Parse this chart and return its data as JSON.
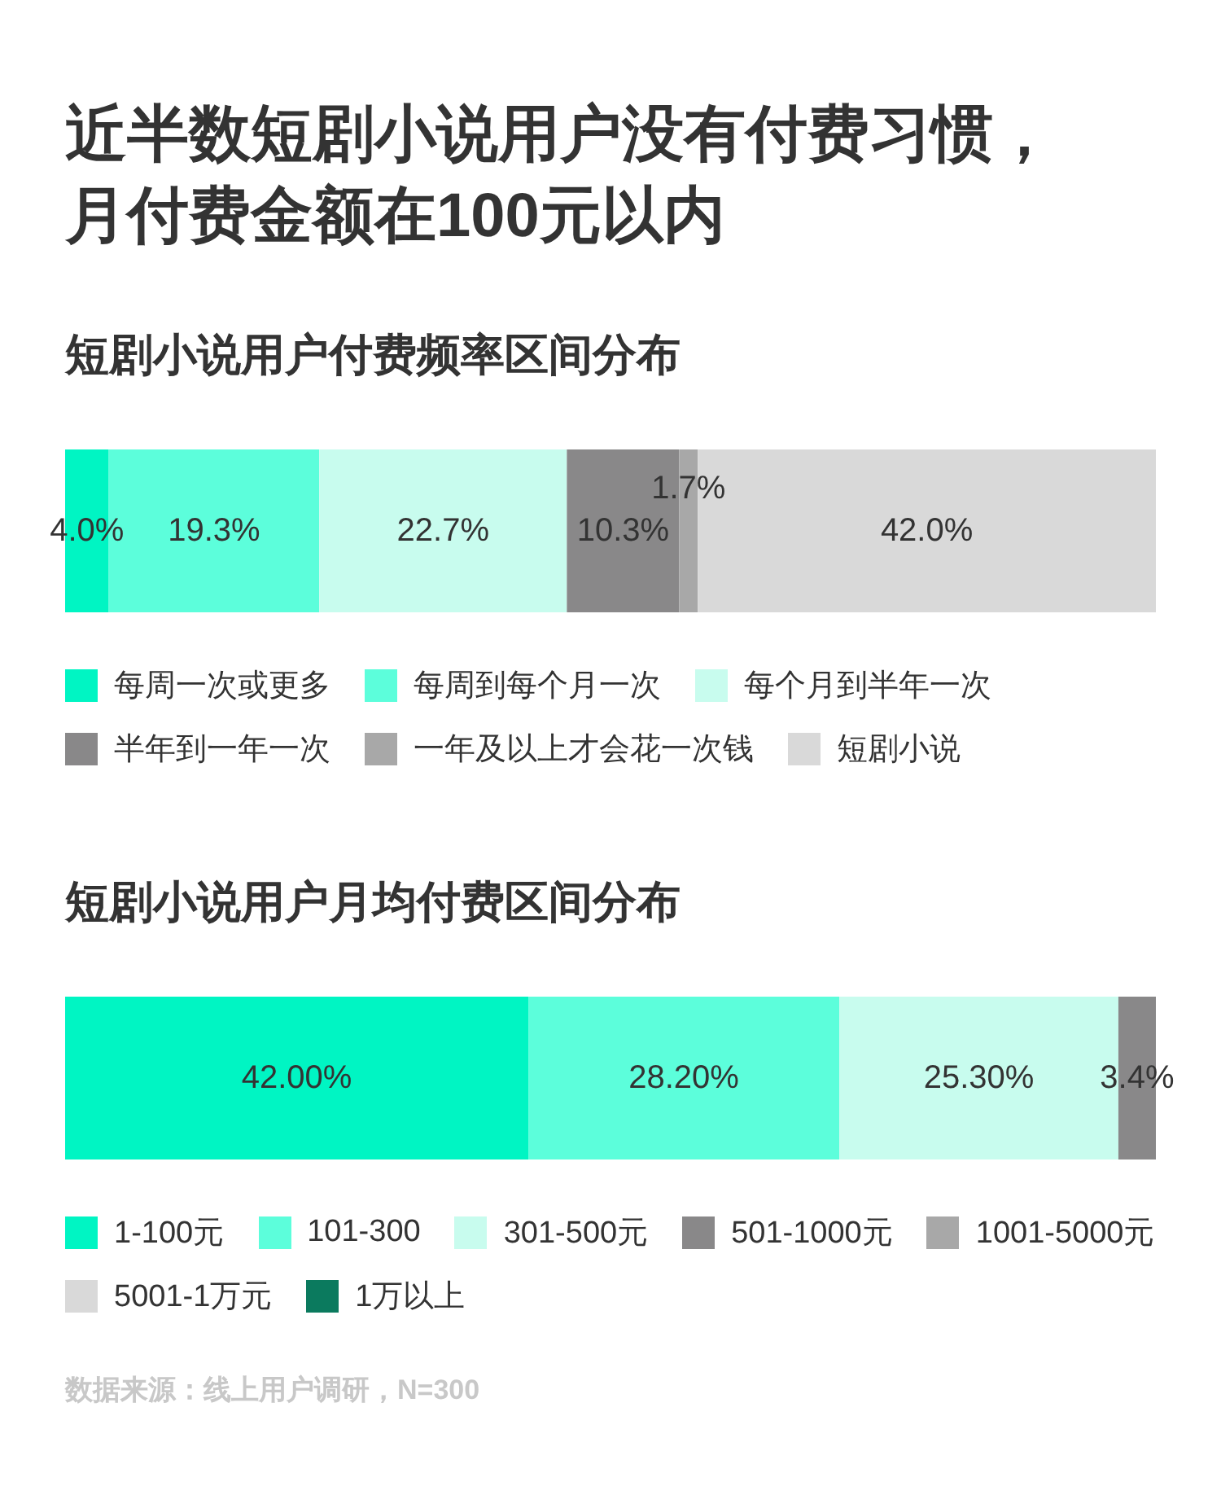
{
  "chart_data": [
    {
      "type": "bar",
      "orientation": "horizontal",
      "stacked": true,
      "title": "近半数短剧小说用户没有付费习惯，月付费金额在100元以内",
      "subtitle": "短剧小说用户付费频率区间分布",
      "categories": [
        null
      ],
      "xlim": [
        0,
        100
      ],
      "tick_labels": false,
      "legend": "bottom",
      "series": [
        {
          "name": "每周一次或更多",
          "color": "#00f5c3",
          "values": [
            4.0
          ],
          "value_labels": [
            "4.0%"
          ]
        },
        {
          "name": "每周到每个月一次",
          "color": "#5cfedb",
          "values": [
            19.3
          ],
          "value_labels": [
            "19.3%"
          ]
        },
        {
          "name": "每个月到半年一次",
          "color": "#c8fcee",
          "values": [
            22.7
          ],
          "value_labels": [
            "22.7%"
          ]
        },
        {
          "name": "半年到一年一次",
          "color": "#898889",
          "values": [
            10.3
          ],
          "value_labels": [
            "10.3%"
          ]
        },
        {
          "name": "一年及以上才会花一次钱",
          "color": "#a8a8a8",
          "values": [
            1.7
          ],
          "value_labels": [
            "1.7%"
          ]
        },
        {
          "name": "短剧小说",
          "color": "#d9d9d9",
          "values": [
            42.0
          ],
          "value_labels": [
            "42.0%"
          ]
        }
      ]
    },
    {
      "type": "bar",
      "orientation": "horizontal",
      "stacked": true,
      "title": "短剧小说用户月均付费区间分布",
      "categories": [
        null
      ],
      "xlim": [
        0,
        98.9
      ],
      "tick_labels": false,
      "legend": "bottom",
      "series": [
        {
          "name": "1-100元",
          "color": "#00f5c3",
          "values": [
            42.0
          ],
          "value_labels": [
            "42.00%"
          ]
        },
        {
          "name": "101-300",
          "color": "#5cfedb",
          "values": [
            28.2
          ],
          "value_labels": [
            "28.20%"
          ]
        },
        {
          "name": "301-500元",
          "color": "#c8fcee",
          "values": [
            25.3
          ],
          "value_labels": [
            "25.30%"
          ]
        },
        {
          "name": "501-1000元",
          "color": "#898889",
          "values": [
            3.4
          ],
          "value_labels": [
            "3.4%"
          ]
        },
        {
          "name": "1001-5000元",
          "color": "#a8a8a8",
          "values": [
            null
          ],
          "value_labels": [
            null
          ]
        },
        {
          "name": "5001-1万元",
          "color": "#d9d9d9",
          "values": [
            null
          ],
          "value_labels": [
            null
          ]
        },
        {
          "name": "1万以上",
          "color": "#0b7a5e",
          "values": [
            null
          ],
          "value_labels": [
            null
          ]
        }
      ],
      "annotations": [
        "数据来源：线上用户调研，N=300"
      ]
    }
  ]
}
